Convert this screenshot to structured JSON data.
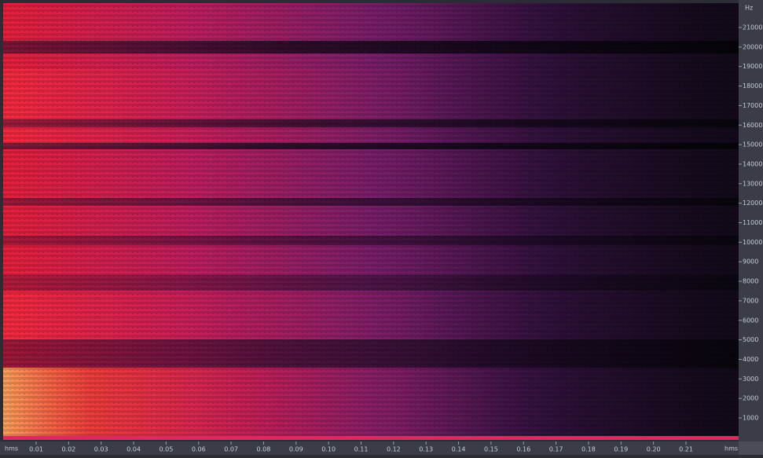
{
  "frequency_axis": {
    "unit": "Hz",
    "labels": [
      "21000",
      "20000",
      "19000",
      "18000",
      "17000",
      "16000",
      "15000",
      "14000",
      "13000",
      "12000",
      "11000",
      "10000",
      "9000",
      "8000",
      "7000",
      "6000",
      "5000",
      "4000",
      "3000",
      "2000",
      "1000"
    ]
  },
  "time_axis": {
    "unit_left": "hms",
    "unit_right": "hms",
    "labels": [
      "0.01",
      "0.02",
      "0.03",
      "0.04",
      "0.05",
      "0.06",
      "0.07",
      "0.08",
      "0.09",
      "0.10",
      "0.11",
      "0.12",
      "0.13",
      "0.14",
      "0.15",
      "0.16",
      "0.17",
      "0.18",
      "0.19",
      "0.20",
      "0.21"
    ]
  }
}
